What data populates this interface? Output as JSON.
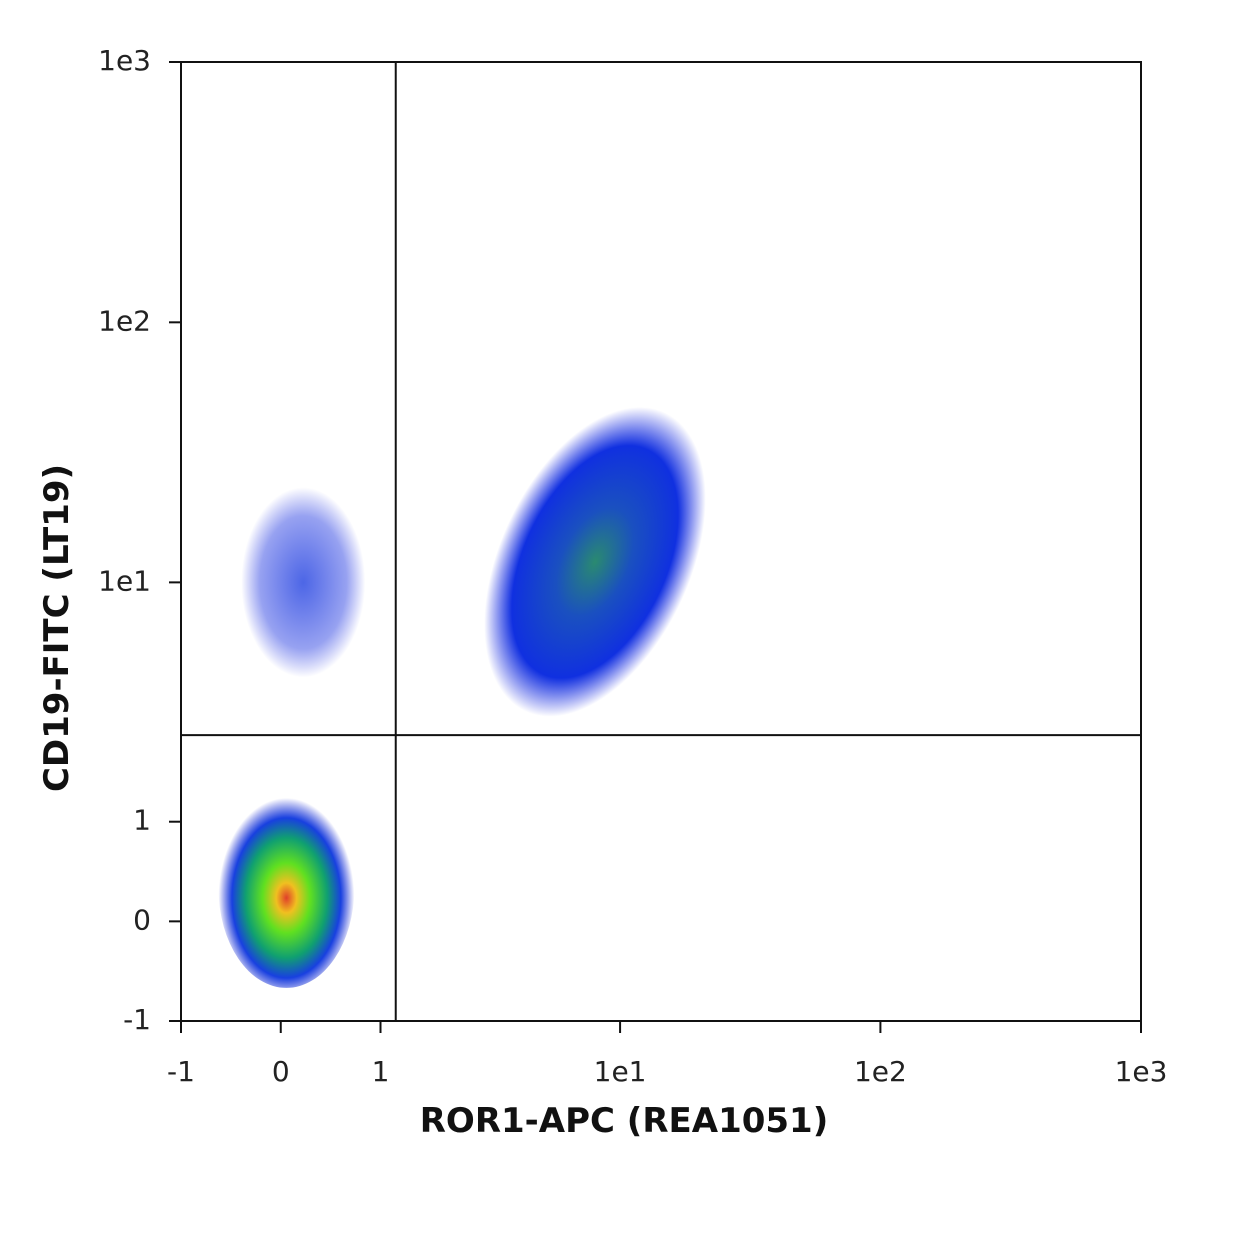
{
  "chart_data": {
    "type": "scatter",
    "scale": "asinh",
    "x_label": "ROR1-APC (REA1051)",
    "y_label": "CD19-FITC (LT19)",
    "x": [
      0.05,
      0.2,
      8
    ],
    "values": [
      0.3,
      10,
      12
    ],
    "xlim": [
      -1,
      1000
    ],
    "ylim": [
      -1,
      1000
    ],
    "xticks": [
      -1,
      0,
      1,
      {
        "value": 10,
        "label": "1e1"
      },
      {
        "value": 100,
        "label": "1e2"
      },
      {
        "value": 1000,
        "label": "1e3"
      }
    ],
    "yticks": [
      -1,
      0,
      1,
      {
        "value": 10,
        "label": "1e1"
      },
      {
        "value": 100,
        "label": "1e2"
      },
      {
        "value": 1000,
        "label": "1e3"
      }
    ],
    "gates": {
      "x": 1.2,
      "y": 2.5
    }
  }
}
